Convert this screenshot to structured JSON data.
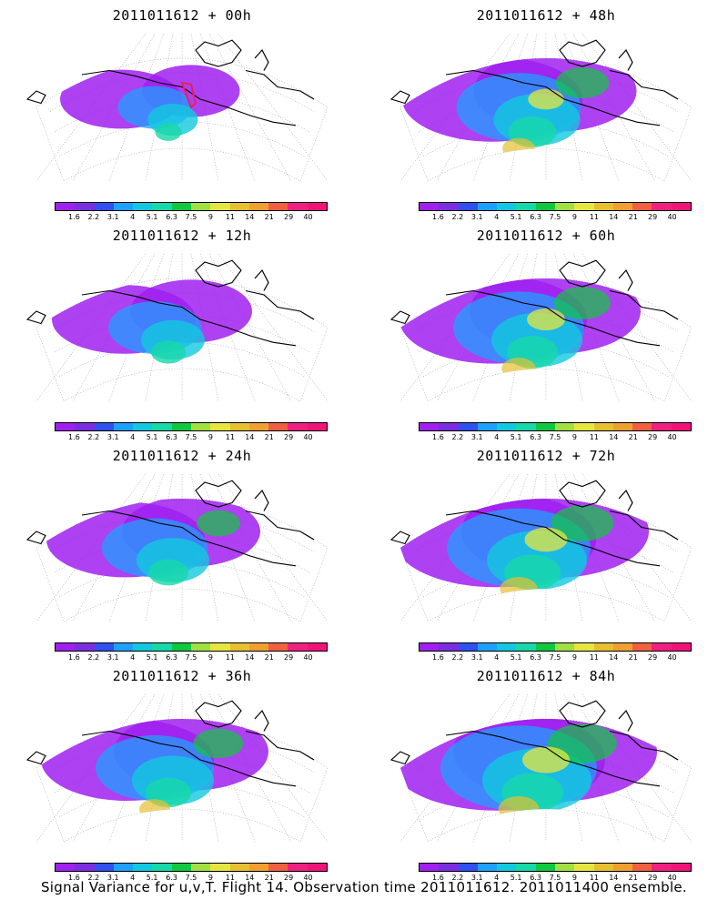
{
  "panels": [
    {
      "title": "2011011612 + 00h",
      "intensity": 0.15,
      "region_marker": true
    },
    {
      "title": "2011011612 + 48h",
      "intensity": 0.55,
      "region_marker": false
    },
    {
      "title": "2011011612 + 12h",
      "intensity": 0.3,
      "region_marker": false
    },
    {
      "title": "2011011612 + 60h",
      "intensity": 0.6,
      "region_marker": false
    },
    {
      "title": "2011011612 + 24h",
      "intensity": 0.4,
      "region_marker": false
    },
    {
      "title": "2011011612 + 72h",
      "intensity": 0.7,
      "region_marker": false
    },
    {
      "title": "2011011612 + 36h",
      "intensity": 0.5,
      "region_marker": false
    },
    {
      "title": "2011011612 + 84h",
      "intensity": 0.8,
      "region_marker": false
    }
  ],
  "colorbar": {
    "labels": [
      "1.6",
      "2.2",
      "3.1",
      "4",
      "5.1",
      "6.3",
      "7.5",
      "9",
      "11",
      "14",
      "21",
      "29",
      "40"
    ],
    "colors": [
      "#a020f0",
      "#7b2ee0",
      "#3050f0",
      "#1ea0ff",
      "#12c8e0",
      "#16d8a8",
      "#10c840",
      "#a0e040",
      "#e6e640",
      "#e6c030",
      "#f0a030",
      "#f06040",
      "#f02080",
      "#f01478"
    ]
  },
  "caption": "Signal Variance for u,v,T. Flight 14. Observation time 2011011612. 2011011400 ensemble."
}
